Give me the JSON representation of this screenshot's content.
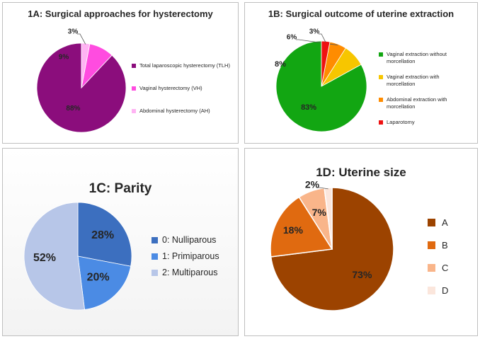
{
  "chart_data": [
    {
      "type": "pie",
      "title": "1A: Surgical approaches for hysterectomy",
      "categories": [
        "Total laparoscopic hysterectomy (TLH)",
        "Vaginal hysterectomy (VH)",
        "Abdominal hysterectomy (AH)"
      ],
      "values": [
        88,
        9,
        3
      ],
      "data_labels": [
        "88%",
        "9%",
        "3%"
      ],
      "colors": [
        "#8b0d7c",
        "#ff4ce0",
        "#ffb3f3"
      ],
      "legend": "right"
    },
    {
      "type": "pie",
      "title": "1B: Surgical outcome of uterine extraction",
      "categories": [
        "Vaginal extraction without morcellation",
        "Vaginal extraction with morcellation",
        "Abdominal extraction with morcellation",
        "Laparotomy"
      ],
      "values": [
        83,
        8,
        6,
        3
      ],
      "data_labels": [
        "83%",
        "8%",
        "6%",
        "3%"
      ],
      "colors": [
        "#12a612",
        "#f7c600",
        "#ff8c00",
        "#ee1111"
      ],
      "legend": "right"
    },
    {
      "type": "pie",
      "title": "1C: Parity",
      "categories": [
        "0: Nulliparous",
        "1: Primiparous",
        "2: Multiparous"
      ],
      "values": [
        28,
        20,
        52
      ],
      "data_labels": [
        "28%",
        "20%",
        "52%"
      ],
      "colors": [
        "#3c6fbf",
        "#4b8be4",
        "#b7c6e8"
      ],
      "legend": "right"
    },
    {
      "type": "pie",
      "title": "1D: Uterine size",
      "categories": [
        "A",
        "B",
        "C",
        "D"
      ],
      "values": [
        73,
        18,
        7,
        2
      ],
      "data_labels": [
        "73%",
        "18%",
        "7%",
        "2%"
      ],
      "colors": [
        "#9c4300",
        "#e06a10",
        "#f9b58a",
        "#fbe6dc"
      ],
      "legend": "right"
    }
  ]
}
